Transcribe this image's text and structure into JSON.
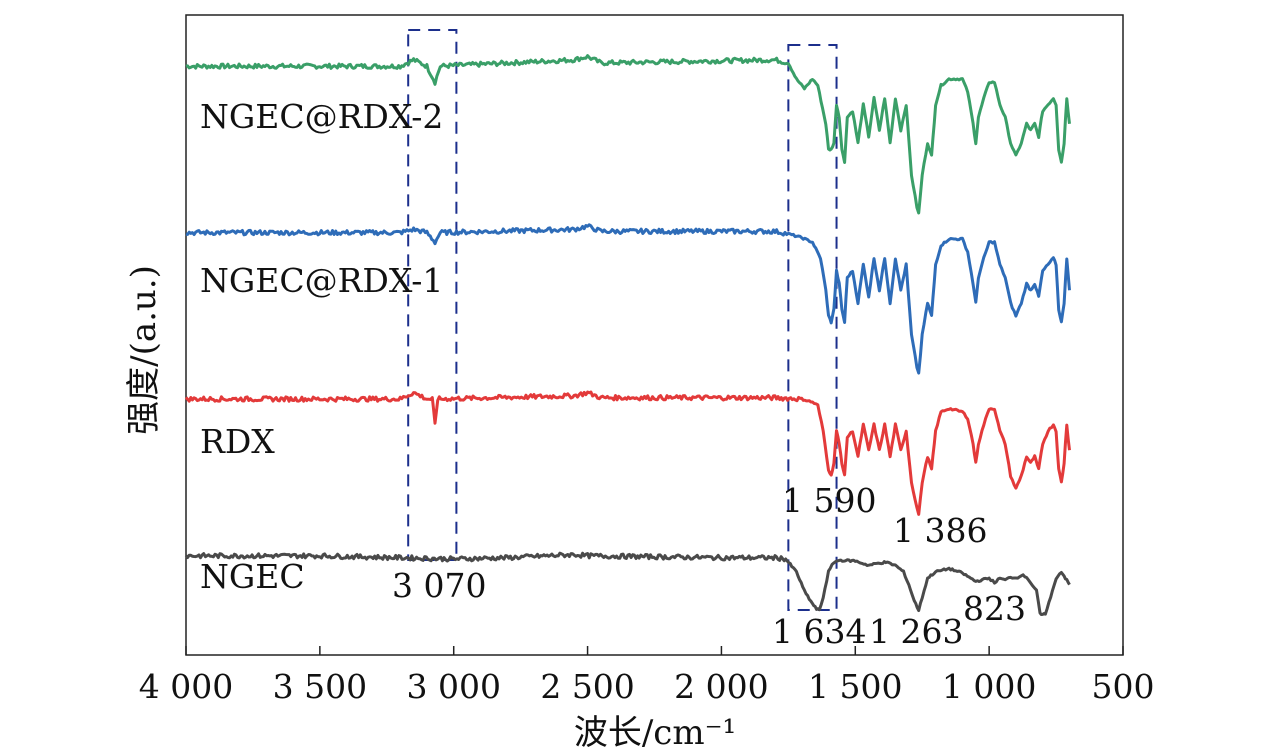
{
  "chart_data": {
    "type": "line",
    "xlabel": "波长/cm⁻¹",
    "ylabel": "强度/(a.u.)",
    "xlim": [
      4000,
      500
    ],
    "x_ticks": [
      {
        "value": 4000,
        "label": "4 000"
      },
      {
        "value": 3500,
        "label": "3 500"
      },
      {
        "value": 3000,
        "label": "3 000"
      },
      {
        "value": 2500,
        "label": "2 500"
      },
      {
        "value": 2000,
        "label": "2 000"
      },
      {
        "value": 1500,
        "label": "1 500"
      },
      {
        "value": 1000,
        "label": "1 000"
      },
      {
        "value": 500,
        "label": "500"
      }
    ],
    "grid": false,
    "series": [
      {
        "name": "NGEC@RDX-2",
        "color": "#3a9f68",
        "baseline": 0.92,
        "points": [
          [
            4000,
            0.92
          ],
          [
            3200,
            0.92
          ],
          [
            3150,
            0.93
          ],
          [
            3100,
            0.92
          ],
          [
            3070,
            0.895
          ],
          [
            3050,
            0.92
          ],
          [
            2550,
            0.93
          ],
          [
            2500,
            0.935
          ],
          [
            2450,
            0.925
          ],
          [
            1800,
            0.93
          ],
          [
            1750,
            0.925
          ],
          [
            1720,
            0.9
          ],
          [
            1690,
            0.885
          ],
          [
            1660,
            0.9
          ],
          [
            1640,
            0.89
          ],
          [
            1610,
            0.83
          ],
          [
            1600,
            0.79
          ],
          [
            1590,
            0.79
          ],
          [
            1580,
            0.8
          ],
          [
            1570,
            0.86
          ],
          [
            1560,
            0.84
          ],
          [
            1550,
            0.79
          ],
          [
            1540,
            0.77
          ],
          [
            1530,
            0.84
          ],
          [
            1510,
            0.85
          ],
          [
            1490,
            0.8
          ],
          [
            1470,
            0.86
          ],
          [
            1450,
            0.81
          ],
          [
            1430,
            0.87
          ],
          [
            1410,
            0.82
          ],
          [
            1390,
            0.87
          ],
          [
            1370,
            0.8
          ],
          [
            1350,
            0.87
          ],
          [
            1330,
            0.82
          ],
          [
            1310,
            0.86
          ],
          [
            1290,
            0.75
          ],
          [
            1270,
            0.7
          ],
          [
            1263,
            0.69
          ],
          [
            1250,
            0.75
          ],
          [
            1230,
            0.8
          ],
          [
            1215,
            0.78
          ],
          [
            1200,
            0.86
          ],
          [
            1180,
            0.89
          ],
          [
            1150,
            0.9
          ],
          [
            1100,
            0.9
          ],
          [
            1080,
            0.88
          ],
          [
            1060,
            0.83
          ],
          [
            1050,
            0.8
          ],
          [
            1040,
            0.84
          ],
          [
            1020,
            0.87
          ],
          [
            1000,
            0.895
          ],
          [
            980,
            0.895
          ],
          [
            960,
            0.86
          ],
          [
            940,
            0.84
          ],
          [
            920,
            0.8
          ],
          [
            900,
            0.78
          ],
          [
            880,
            0.8
          ],
          [
            860,
            0.83
          ],
          [
            845,
            0.82
          ],
          [
            830,
            0.83
          ],
          [
            815,
            0.81
          ],
          [
            800,
            0.85
          ],
          [
            780,
            0.86
          ],
          [
            760,
            0.87
          ],
          [
            750,
            0.86
          ],
          [
            740,
            0.79
          ],
          [
            730,
            0.77
          ],
          [
            720,
            0.8
          ],
          [
            710,
            0.87
          ],
          [
            700,
            0.83
          ]
        ]
      },
      {
        "name": "NGEC@RDX-1",
        "color": "#2e6cb8",
        "baseline": 0.66,
        "points": [
          [
            4000,
            0.66
          ],
          [
            3200,
            0.66
          ],
          [
            3150,
            0.665
          ],
          [
            3100,
            0.66
          ],
          [
            3070,
            0.645
          ],
          [
            3050,
            0.66
          ],
          [
            2550,
            0.665
          ],
          [
            2500,
            0.67
          ],
          [
            2450,
            0.662
          ],
          [
            1800,
            0.662
          ],
          [
            1750,
            0.658
          ],
          [
            1700,
            0.652
          ],
          [
            1660,
            0.645
          ],
          [
            1630,
            0.62
          ],
          [
            1610,
            0.57
          ],
          [
            1600,
            0.53
          ],
          [
            1590,
            0.52
          ],
          [
            1580,
            0.54
          ],
          [
            1570,
            0.6
          ],
          [
            1560,
            0.58
          ],
          [
            1550,
            0.54
          ],
          [
            1540,
            0.52
          ],
          [
            1530,
            0.59
          ],
          [
            1510,
            0.6
          ],
          [
            1490,
            0.55
          ],
          [
            1470,
            0.61
          ],
          [
            1450,
            0.56
          ],
          [
            1430,
            0.62
          ],
          [
            1410,
            0.57
          ],
          [
            1390,
            0.62
          ],
          [
            1370,
            0.55
          ],
          [
            1350,
            0.62
          ],
          [
            1330,
            0.57
          ],
          [
            1310,
            0.61
          ],
          [
            1290,
            0.5
          ],
          [
            1270,
            0.45
          ],
          [
            1263,
            0.44
          ],
          [
            1250,
            0.5
          ],
          [
            1230,
            0.55
          ],
          [
            1215,
            0.53
          ],
          [
            1200,
            0.61
          ],
          [
            1180,
            0.64
          ],
          [
            1150,
            0.65
          ],
          [
            1100,
            0.65
          ],
          [
            1080,
            0.63
          ],
          [
            1060,
            0.58
          ],
          [
            1050,
            0.55
          ],
          [
            1040,
            0.59
          ],
          [
            1020,
            0.62
          ],
          [
            1000,
            0.645
          ],
          [
            980,
            0.645
          ],
          [
            960,
            0.61
          ],
          [
            940,
            0.59
          ],
          [
            920,
            0.55
          ],
          [
            900,
            0.53
          ],
          [
            880,
            0.55
          ],
          [
            860,
            0.58
          ],
          [
            845,
            0.57
          ],
          [
            830,
            0.58
          ],
          [
            815,
            0.56
          ],
          [
            800,
            0.6
          ],
          [
            780,
            0.61
          ],
          [
            760,
            0.62
          ],
          [
            750,
            0.61
          ],
          [
            740,
            0.54
          ],
          [
            730,
            0.52
          ],
          [
            720,
            0.55
          ],
          [
            710,
            0.62
          ],
          [
            700,
            0.57
          ]
        ]
      },
      {
        "name": "RDX",
        "color": "#e33a3a",
        "baseline": 0.4,
        "points": [
          [
            4000,
            0.4
          ],
          [
            3200,
            0.4
          ],
          [
            3150,
            0.41
          ],
          [
            3100,
            0.4
          ],
          [
            3080,
            0.4
          ],
          [
            3070,
            0.36
          ],
          [
            3060,
            0.4
          ],
          [
            2550,
            0.405
          ],
          [
            2500,
            0.41
          ],
          [
            2450,
            0.402
          ],
          [
            1800,
            0.402
          ],
          [
            1700,
            0.4
          ],
          [
            1660,
            0.395
          ],
          [
            1640,
            0.39
          ],
          [
            1620,
            0.35
          ],
          [
            1600,
            0.29
          ],
          [
            1590,
            0.28
          ],
          [
            1580,
            0.3
          ],
          [
            1570,
            0.35
          ],
          [
            1560,
            0.33
          ],
          [
            1550,
            0.3
          ],
          [
            1540,
            0.28
          ],
          [
            1530,
            0.34
          ],
          [
            1510,
            0.35
          ],
          [
            1490,
            0.31
          ],
          [
            1470,
            0.36
          ],
          [
            1450,
            0.32
          ],
          [
            1430,
            0.36
          ],
          [
            1410,
            0.32
          ],
          [
            1390,
            0.36
          ],
          [
            1370,
            0.31
          ],
          [
            1350,
            0.36
          ],
          [
            1330,
            0.32
          ],
          [
            1310,
            0.35
          ],
          [
            1290,
            0.27
          ],
          [
            1270,
            0.23
          ],
          [
            1263,
            0.22
          ],
          [
            1250,
            0.27
          ],
          [
            1230,
            0.31
          ],
          [
            1215,
            0.29
          ],
          [
            1200,
            0.35
          ],
          [
            1180,
            0.38
          ],
          [
            1150,
            0.385
          ],
          [
            1100,
            0.38
          ],
          [
            1080,
            0.37
          ],
          [
            1060,
            0.33
          ],
          [
            1050,
            0.3
          ],
          [
            1040,
            0.33
          ],
          [
            1020,
            0.36
          ],
          [
            1000,
            0.385
          ],
          [
            980,
            0.385
          ],
          [
            960,
            0.35
          ],
          [
            940,
            0.33
          ],
          [
            920,
            0.28
          ],
          [
            900,
            0.26
          ],
          [
            880,
            0.28
          ],
          [
            860,
            0.31
          ],
          [
            845,
            0.3
          ],
          [
            830,
            0.31
          ],
          [
            815,
            0.29
          ],
          [
            800,
            0.33
          ],
          [
            780,
            0.35
          ],
          [
            760,
            0.36
          ],
          [
            750,
            0.35
          ],
          [
            740,
            0.29
          ],
          [
            730,
            0.27
          ],
          [
            720,
            0.3
          ],
          [
            710,
            0.36
          ],
          [
            700,
            0.32
          ]
        ]
      },
      {
        "name": "NGEC",
        "color": "#4a4a4a",
        "baseline": 0.155,
        "points": [
          [
            4000,
            0.155
          ],
          [
            3500,
            0.155
          ],
          [
            3000,
            0.15
          ],
          [
            2800,
            0.152
          ],
          [
            2550,
            0.157
          ],
          [
            2500,
            0.155
          ],
          [
            2000,
            0.152
          ],
          [
            1800,
            0.152
          ],
          [
            1760,
            0.15
          ],
          [
            1720,
            0.13
          ],
          [
            1690,
            0.1
          ],
          [
            1660,
            0.08
          ],
          [
            1645,
            0.072
          ],
          [
            1634,
            0.07
          ],
          [
            1620,
            0.09
          ],
          [
            1600,
            0.13
          ],
          [
            1580,
            0.145
          ],
          [
            1560,
            0.148
          ],
          [
            1500,
            0.147
          ],
          [
            1450,
            0.14
          ],
          [
            1420,
            0.143
          ],
          [
            1386,
            0.145
          ],
          [
            1350,
            0.14
          ],
          [
            1320,
            0.13
          ],
          [
            1300,
            0.11
          ],
          [
            1280,
            0.085
          ],
          [
            1263,
            0.07
          ],
          [
            1250,
            0.09
          ],
          [
            1230,
            0.12
          ],
          [
            1200,
            0.13
          ],
          [
            1150,
            0.135
          ],
          [
            1100,
            0.128
          ],
          [
            1050,
            0.115
          ],
          [
            1000,
            0.12
          ],
          [
            980,
            0.113
          ],
          [
            960,
            0.12
          ],
          [
            940,
            0.117
          ],
          [
            920,
            0.122
          ],
          [
            900,
            0.12
          ],
          [
            880,
            0.125
          ],
          [
            860,
            0.122
          ],
          [
            840,
            0.11
          ],
          [
            823,
            0.1
          ],
          [
            810,
            0.065
          ],
          [
            800,
            0.062
          ],
          [
            790,
            0.065
          ],
          [
            770,
            0.09
          ],
          [
            750,
            0.12
          ],
          [
            730,
            0.13
          ],
          [
            715,
            0.12
          ],
          [
            700,
            0.11
          ]
        ]
      }
    ],
    "annotations": [
      {
        "label": "3 070",
        "x": 3070
      },
      {
        "label": "1 590",
        "x": 1590
      },
      {
        "label": "1 386",
        "x": 1386
      },
      {
        "label": "1 634",
        "x": 1634
      },
      {
        "label": "1 263",
        "x": 1263
      },
      {
        "label": "823",
        "x": 823
      }
    ],
    "highlight_boxes": [
      {
        "x_range": [
          3170,
          2990
        ],
        "color": "#1c2f8c"
      },
      {
        "x_range": [
          1750,
          1570
        ],
        "color": "#1c2f8c"
      }
    ]
  }
}
